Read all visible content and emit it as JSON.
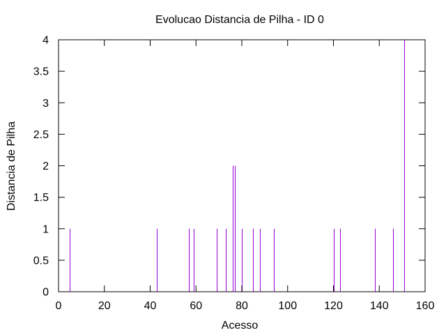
{
  "chart_data": {
    "type": "bar",
    "title": "Evolucao Distancia de Pilha - ID 0",
    "xlabel": "Acesso",
    "ylabel": "Distancia de Pilha",
    "xlim": [
      0,
      160
    ],
    "ylim": [
      0,
      4
    ],
    "x_ticks": [
      "0",
      "20",
      "40",
      "60",
      "80",
      "100",
      "120",
      "140",
      "160"
    ],
    "y_ticks": [
      "0",
      "0.5",
      "1",
      "1.5",
      "2",
      "2.5",
      "3",
      "3.5",
      "4"
    ],
    "grid": false,
    "bar_color": "#9400d3",
    "x": [
      5,
      43,
      57,
      59,
      69,
      73,
      76,
      77,
      80,
      85,
      88,
      94,
      120,
      123,
      138,
      146,
      151
    ],
    "values": [
      1,
      1,
      1,
      1,
      1,
      1,
      2,
      2,
      1,
      1,
      1,
      1,
      1,
      1,
      1,
      1,
      4
    ]
  }
}
